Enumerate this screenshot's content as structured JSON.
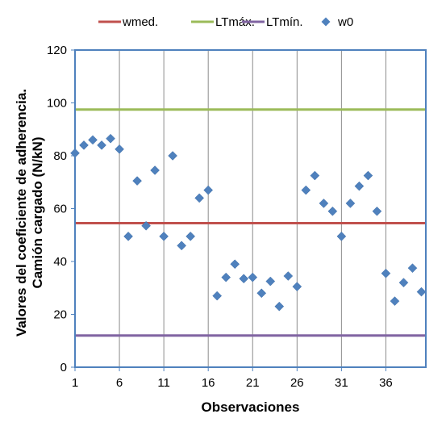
{
  "chart_data": {
    "type": "scatter",
    "title": "",
    "xlabel": "Observaciones",
    "ylabel_lines": [
      "Valores del coeficiente de adherencia.",
      "Camión cargado (N/kN)"
    ],
    "xlim": [
      1,
      40.5
    ],
    "ylim": [
      0,
      120
    ],
    "x_ticks": [
      1,
      6,
      11,
      16,
      21,
      26,
      31,
      36
    ],
    "y_ticks": [
      0,
      20,
      40,
      60,
      80,
      100,
      120
    ],
    "grid": "vertical",
    "legend_position": "top",
    "series": [
      {
        "name": "wmed.",
        "kind": "hline",
        "value": 54.5,
        "color": "#c0504d"
      },
      {
        "name": "LTmáx.",
        "kind": "hline",
        "value": 97.5,
        "color": "#9bbb59"
      },
      {
        "name": "LTmín.",
        "kind": "hline",
        "value": 12,
        "color": "#8064a2"
      },
      {
        "name": "w0",
        "kind": "points",
        "color": "#4f81bd",
        "x": [
          1,
          2,
          3,
          4,
          5,
          6,
          7,
          8,
          9,
          10,
          11,
          12,
          13,
          14,
          15,
          16,
          17,
          18,
          19,
          20,
          21,
          22,
          23,
          24,
          25,
          26,
          27,
          28,
          29,
          30,
          31,
          32,
          33,
          34,
          35,
          36,
          37,
          38,
          39,
          40
        ],
        "y": [
          81,
          84,
          86,
          84,
          86.5,
          82.5,
          49.5,
          70.5,
          53.5,
          74.5,
          49.5,
          80,
          46,
          49.5,
          64,
          67,
          27,
          34,
          39,
          33.5,
          34,
          28,
          32.5,
          23,
          34.5,
          30.5,
          67,
          72.5,
          62,
          59,
          49.5,
          62,
          68.5,
          72.5,
          59,
          35.5,
          25,
          32,
          37.5,
          28.5
        ]
      }
    ]
  }
}
